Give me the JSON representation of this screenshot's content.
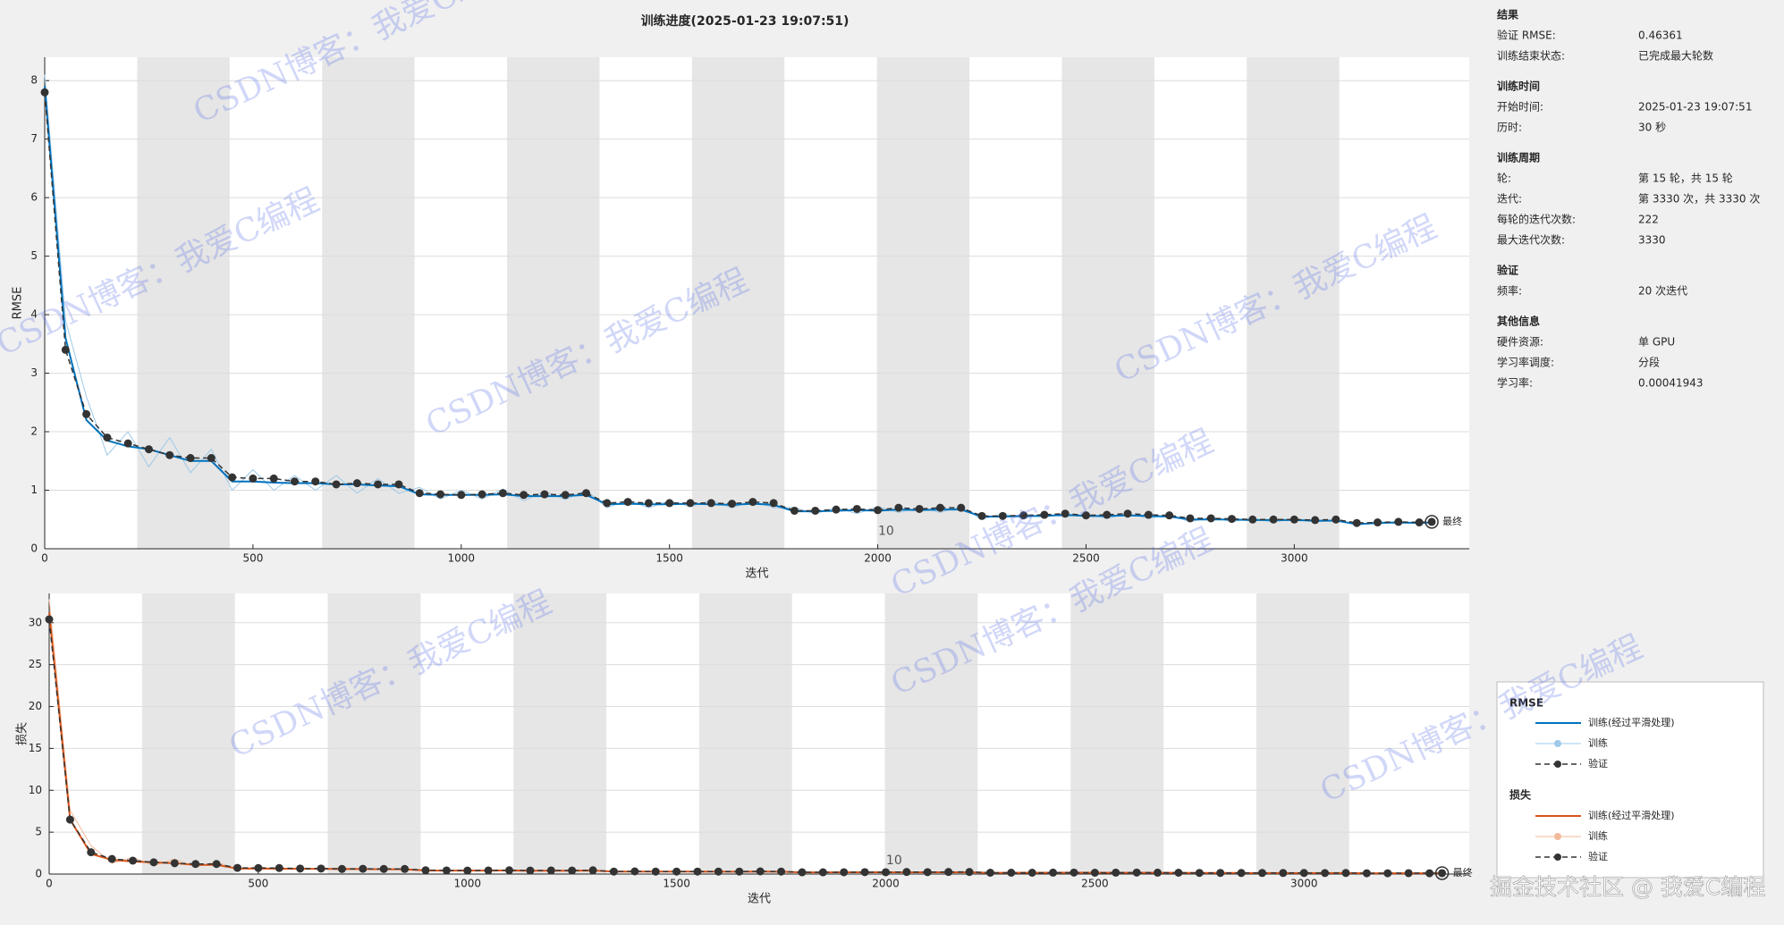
{
  "title": "训练进度(2025-01-23 19:07:51)",
  "chart_data": [
    {
      "type": "line",
      "ylabel": "RMSE",
      "xlabel": "迭代",
      "legend_title": "RMSE",
      "final_label": "最终",
      "xlim": [
        0,
        3420
      ],
      "ylim": [
        0,
        8.4
      ],
      "xticks": [
        0,
        500,
        1000,
        1500,
        2000,
        2500,
        3000
      ],
      "yticks": [
        0,
        1,
        2,
        3,
        4,
        5,
        6,
        7,
        8
      ],
      "grid": true,
      "shaded_ranges": [
        [
          222,
          444
        ],
        [
          666,
          888
        ],
        [
          1110,
          1332
        ],
        [
          1554,
          1776
        ],
        [
          1998,
          2220
        ],
        [
          2442,
          2664
        ],
        [
          2886,
          3108
        ]
      ],
      "annotations": [
        {
          "text": "10",
          "x": 2020,
          "y": 0.3
        }
      ],
      "x": [
        0,
        50,
        100,
        150,
        200,
        250,
        300,
        350,
        400,
        450,
        500,
        550,
        600,
        650,
        700,
        750,
        800,
        850,
        900,
        950,
        1000,
        1050,
        1100,
        1150,
        1200,
        1250,
        1300,
        1350,
        1400,
        1450,
        1500,
        1550,
        1600,
        1650,
        1700,
        1750,
        1800,
        1850,
        1900,
        1950,
        2000,
        2050,
        2100,
        2150,
        2200,
        2250,
        2300,
        2350,
        2400,
        2450,
        2500,
        2550,
        2600,
        2650,
        2700,
        2750,
        2800,
        2850,
        2900,
        2950,
        3000,
        3050,
        3100,
        3150,
        3200,
        3250,
        3300,
        3330
      ],
      "series": [
        {
          "name": "训练",
          "color": "#9ec9e8",
          "line_style": "solid",
          "width": 1,
          "values": [
            8.1,
            3.9,
            2.6,
            1.6,
            2.0,
            1.4,
            1.9,
            1.3,
            1.7,
            1.0,
            1.35,
            1.0,
            1.25,
            1.0,
            1.25,
            0.95,
            1.2,
            0.95,
            1.05,
            0.85,
            1.0,
            0.85,
            1.02,
            0.82,
            0.98,
            0.84,
            1.0,
            0.7,
            0.84,
            0.7,
            0.82,
            0.72,
            0.83,
            0.7,
            0.82,
            0.7,
            0.7,
            0.6,
            0.7,
            0.6,
            0.72,
            0.62,
            0.7,
            0.62,
            0.72,
            0.5,
            0.6,
            0.52,
            0.6,
            0.54,
            0.6,
            0.52,
            0.6,
            0.52,
            0.58,
            0.46,
            0.54,
            0.46,
            0.52,
            0.45,
            0.52,
            0.45,
            0.5,
            0.4,
            0.47,
            0.42,
            0.47,
            0.44
          ]
        },
        {
          "name": "训练(经过平滑处理)",
          "color": "#0072bd",
          "line_style": "solid",
          "width": 2,
          "values": [
            7.9,
            3.6,
            2.2,
            1.85,
            1.75,
            1.7,
            1.6,
            1.5,
            1.5,
            1.15,
            1.15,
            1.13,
            1.12,
            1.12,
            1.1,
            1.1,
            1.08,
            1.07,
            0.93,
            0.92,
            0.92,
            0.92,
            0.93,
            0.9,
            0.9,
            0.9,
            0.92,
            0.76,
            0.77,
            0.76,
            0.76,
            0.77,
            0.76,
            0.75,
            0.77,
            0.75,
            0.64,
            0.64,
            0.65,
            0.66,
            0.65,
            0.67,
            0.66,
            0.67,
            0.67,
            0.55,
            0.55,
            0.56,
            0.56,
            0.58,
            0.56,
            0.56,
            0.57,
            0.56,
            0.55,
            0.5,
            0.5,
            0.5,
            0.49,
            0.49,
            0.49,
            0.48,
            0.48,
            0.42,
            0.44,
            0.45,
            0.44,
            0.45
          ]
        },
        {
          "name": "验证",
          "color": "#333333",
          "line_style": "dashed",
          "width": 1.5,
          "marker": "circle",
          "values": [
            7.8,
            3.4,
            2.3,
            1.9,
            1.8,
            1.7,
            1.6,
            1.55,
            1.55,
            1.22,
            1.2,
            1.2,
            1.15,
            1.15,
            1.1,
            1.12,
            1.1,
            1.1,
            0.95,
            0.93,
            0.92,
            0.93,
            0.95,
            0.92,
            0.93,
            0.92,
            0.95,
            0.78,
            0.8,
            0.78,
            0.78,
            0.78,
            0.78,
            0.77,
            0.8,
            0.78,
            0.65,
            0.65,
            0.67,
            0.68,
            0.66,
            0.7,
            0.68,
            0.7,
            0.7,
            0.56,
            0.56,
            0.57,
            0.58,
            0.6,
            0.57,
            0.58,
            0.6,
            0.58,
            0.57,
            0.52,
            0.52,
            0.51,
            0.5,
            0.5,
            0.5,
            0.49,
            0.5,
            0.44,
            0.45,
            0.46,
            0.45,
            0.46
          ]
        }
      ]
    },
    {
      "type": "line",
      "ylabel": "损失",
      "xlabel": "迭代",
      "legend_title": "损失",
      "final_label": "最终",
      "xlim": [
        0,
        3395
      ],
      "ylim": [
        0,
        33.5
      ],
      "xticks": [
        0,
        500,
        1000,
        1500,
        2000,
        2500,
        3000
      ],
      "yticks": [
        0,
        5,
        10,
        15,
        20,
        25,
        30
      ],
      "grid": true,
      "shaded_ranges": [
        [
          222,
          444
        ],
        [
          666,
          888
        ],
        [
          1110,
          1332
        ],
        [
          1554,
          1776
        ],
        [
          1998,
          2220
        ],
        [
          2442,
          2664
        ],
        [
          2886,
          3108
        ]
      ],
      "annotations": [
        {
          "text": "10",
          "x": 2020,
          "y": 1.6
        }
      ],
      "x": [
        0,
        50,
        100,
        150,
        200,
        250,
        300,
        350,
        400,
        450,
        500,
        550,
        600,
        650,
        700,
        750,
        800,
        850,
        900,
        950,
        1000,
        1050,
        1100,
        1150,
        1200,
        1250,
        1300,
        1350,
        1400,
        1450,
        1500,
        1550,
        1600,
        1650,
        1700,
        1750,
        1800,
        1850,
        1900,
        1950,
        2000,
        2050,
        2100,
        2150,
        2200,
        2250,
        2300,
        2350,
        2400,
        2450,
        2500,
        2550,
        2600,
        2650,
        2700,
        2750,
        2800,
        2850,
        2900,
        2950,
        3000,
        3050,
        3100,
        3150,
        3200,
        3250,
        3300,
        3330
      ],
      "series": [
        {
          "name": "训练",
          "color": "#f2b99a",
          "line_style": "solid",
          "width": 1,
          "values": [
            32.8,
            7.6,
            3.4,
            1.3,
            2.0,
            1.0,
            1.8,
            0.85,
            1.45,
            0.5,
            0.9,
            0.5,
            0.78,
            0.5,
            0.78,
            0.45,
            0.72,
            0.45,
            0.55,
            0.36,
            0.5,
            0.36,
            0.52,
            0.34,
            0.48,
            0.35,
            0.5,
            0.25,
            0.35,
            0.25,
            0.34,
            0.26,
            0.34,
            0.25,
            0.34,
            0.25,
            0.25,
            0.18,
            0.25,
            0.18,
            0.26,
            0.19,
            0.25,
            0.19,
            0.26,
            0.13,
            0.18,
            0.14,
            0.18,
            0.15,
            0.18,
            0.14,
            0.18,
            0.14,
            0.17,
            0.11,
            0.15,
            0.11,
            0.14,
            0.1,
            0.14,
            0.1,
            0.13,
            0.08,
            0.11,
            0.09,
            0.11,
            0.1
          ]
        },
        {
          "name": "训练(经过平滑处理)",
          "color": "#d95319",
          "line_style": "solid",
          "width": 2,
          "values": [
            31.2,
            6.5,
            2.4,
            1.7,
            1.5,
            1.4,
            1.3,
            1.1,
            1.1,
            0.66,
            0.66,
            0.64,
            0.63,
            0.63,
            0.6,
            0.6,
            0.58,
            0.57,
            0.43,
            0.42,
            0.42,
            0.42,
            0.43,
            0.4,
            0.4,
            0.4,
            0.42,
            0.29,
            0.3,
            0.29,
            0.29,
            0.3,
            0.29,
            0.28,
            0.3,
            0.28,
            0.2,
            0.2,
            0.21,
            0.22,
            0.21,
            0.22,
            0.22,
            0.22,
            0.22,
            0.15,
            0.15,
            0.16,
            0.16,
            0.17,
            0.16,
            0.16,
            0.16,
            0.16,
            0.15,
            0.13,
            0.13,
            0.13,
            0.12,
            0.12,
            0.12,
            0.12,
            0.12,
            0.09,
            0.1,
            0.1,
            0.1,
            0.1
          ]
        },
        {
          "name": "验证",
          "color": "#333333",
          "line_style": "dashed",
          "width": 1.5,
          "marker": "circle",
          "values": [
            30.4,
            6.5,
            2.6,
            1.8,
            1.6,
            1.4,
            1.3,
            1.2,
            1.2,
            0.74,
            0.72,
            0.72,
            0.66,
            0.66,
            0.61,
            0.63,
            0.61,
            0.61,
            0.45,
            0.43,
            0.42,
            0.43,
            0.45,
            0.42,
            0.43,
            0.42,
            0.45,
            0.3,
            0.32,
            0.3,
            0.3,
            0.3,
            0.3,
            0.3,
            0.32,
            0.3,
            0.21,
            0.21,
            0.22,
            0.23,
            0.22,
            0.25,
            0.23,
            0.25,
            0.25,
            0.16,
            0.16,
            0.16,
            0.17,
            0.18,
            0.16,
            0.17,
            0.18,
            0.17,
            0.16,
            0.14,
            0.14,
            0.13,
            0.13,
            0.13,
            0.13,
            0.12,
            0.13,
            0.1,
            0.1,
            0.11,
            0.1,
            0.11
          ]
        }
      ]
    }
  ],
  "info_panel": {
    "sections": [
      {
        "title": "结果",
        "rows": [
          [
            "验证 RMSE:",
            "0.46361"
          ],
          [
            "训练结束状态:",
            "已完成最大轮数"
          ]
        ]
      },
      {
        "title": "训练时间",
        "rows": [
          [
            "开始时间:",
            "2025-01-23 19:07:51"
          ],
          [
            "历时:",
            "30 秒"
          ]
        ]
      },
      {
        "title": "训练周期",
        "rows": [
          [
            "轮:",
            "第 15 轮，共 15 轮"
          ],
          [
            "迭代:",
            "第 3330 次，共 3330 次"
          ],
          [
            "每轮的迭代次数:",
            "222"
          ],
          [
            "最大迭代次数:",
            "3330"
          ]
        ]
      },
      {
        "title": "验证",
        "rows": [
          [
            "频率:",
            "20 次迭代"
          ]
        ]
      },
      {
        "title": "其他信息",
        "rows": [
          [
            "硬件资源:",
            "单 GPU"
          ],
          [
            "学习率调度:",
            "分段"
          ],
          [
            "学习率:",
            "0.00041943"
          ]
        ]
      }
    ]
  },
  "watermarks": {
    "csdn": "CSDN博客：我爱C编程",
    "juejin": "掘金技术社区 @ 我爱C编程"
  }
}
